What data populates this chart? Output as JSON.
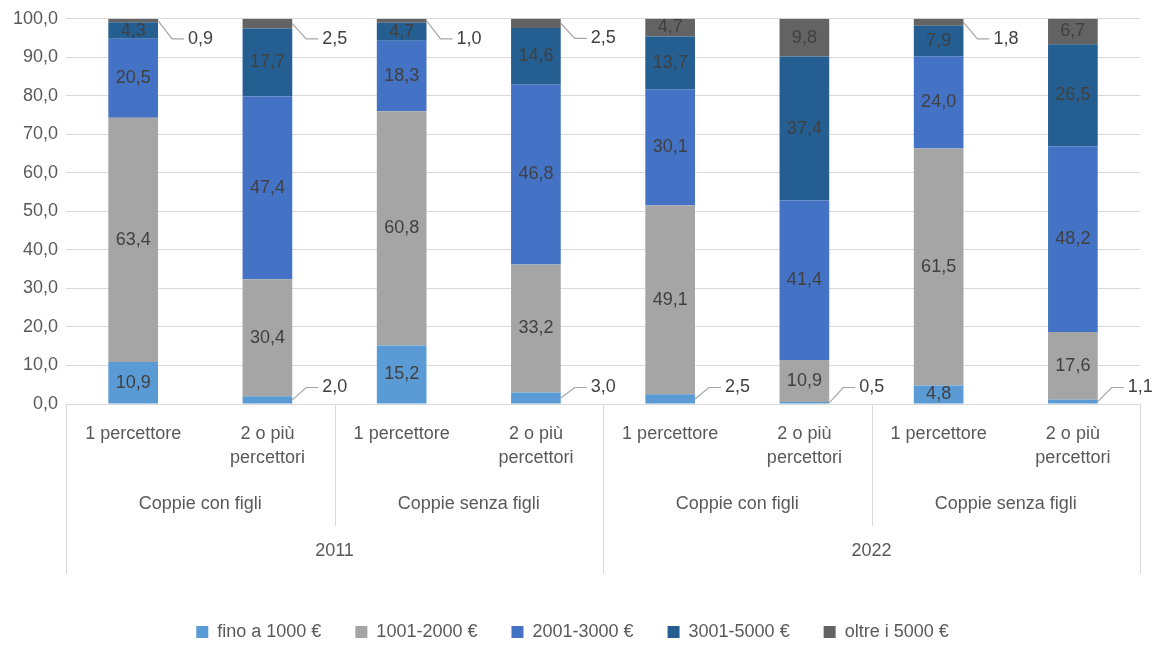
{
  "chart_data": {
    "type": "bar",
    "stacked": true,
    "categories": [
      "1 percettore",
      "2 o più percettori",
      "1 percettore",
      "2 o più percettori",
      "1 percettore",
      "2 o più percettori",
      "1 percettore",
      "2 o più percettori"
    ],
    "series": [
      {
        "name": "fino a 1000 €",
        "color": "#5b9bd5",
        "values": [
          10.9,
          2.0,
          15.2,
          3.0,
          2.5,
          0.5,
          4.8,
          1.1
        ],
        "value_labels": [
          "10,9",
          "2,0",
          "15,2",
          "3,0",
          "2,5",
          "0,5",
          "4,8",
          "1,1"
        ]
      },
      {
        "name": "1001-2000 €",
        "color": "#a5a5a5",
        "values": [
          63.4,
          30.4,
          60.8,
          33.2,
          49.1,
          10.9,
          61.5,
          17.6
        ],
        "value_labels": [
          "63,4",
          "30,4",
          "60,8",
          "33,2",
          "49,1",
          "10,9",
          "61,5",
          "17,6"
        ]
      },
      {
        "name": "2001-3000 €",
        "color": "#4472c4",
        "values": [
          20.5,
          47.4,
          18.3,
          46.8,
          30.1,
          41.4,
          24.0,
          48.2
        ],
        "value_labels": [
          "20,5",
          "47,4",
          "18,3",
          "46,8",
          "30,1",
          "41,4",
          "24,0",
          "48,2"
        ]
      },
      {
        "name": "3001-5000 €",
        "color": "#255e91",
        "values": [
          4.3,
          17.7,
          4.7,
          14.6,
          13.7,
          37.4,
          7.9,
          26.5
        ],
        "value_labels": [
          "4,3",
          "17,7",
          "4,7",
          "14,6",
          "13,7",
          "37,4",
          "7,9",
          "26,5"
        ]
      },
      {
        "name": "oltre i 5000 €",
        "color": "#636363",
        "values": [
          0.9,
          2.5,
          1.0,
          2.5,
          4.7,
          9.8,
          1.8,
          6.7
        ],
        "value_labels": [
          "0,9",
          "2,5",
          "1,0",
          "2,5",
          "4,7",
          "9,8",
          "1,8",
          "6,7"
        ]
      }
    ],
    "ylim": [
      0,
      100
    ],
    "yticks": [
      {
        "value": 0,
        "label": "0,0"
      },
      {
        "value": 10,
        "label": "10,0"
      },
      {
        "value": 20,
        "label": "20,0"
      },
      {
        "value": 30,
        "label": "30,0"
      },
      {
        "value": 40,
        "label": "40,0"
      },
      {
        "value": 50,
        "label": "50,0"
      },
      {
        "value": 60,
        "label": "60,0"
      },
      {
        "value": 70,
        "label": "70,0"
      },
      {
        "value": 80,
        "label": "80,0"
      },
      {
        "value": 90,
        "label": "90,0"
      },
      {
        "value": 100,
        "label": "100,0"
      }
    ],
    "annotations": [
      "Coppie con figli",
      "Coppie senza figli",
      "Coppie con figli",
      "Coppie senza figli",
      "2011",
      "2022"
    ],
    "grid": "y",
    "legend": "bottom"
  }
}
